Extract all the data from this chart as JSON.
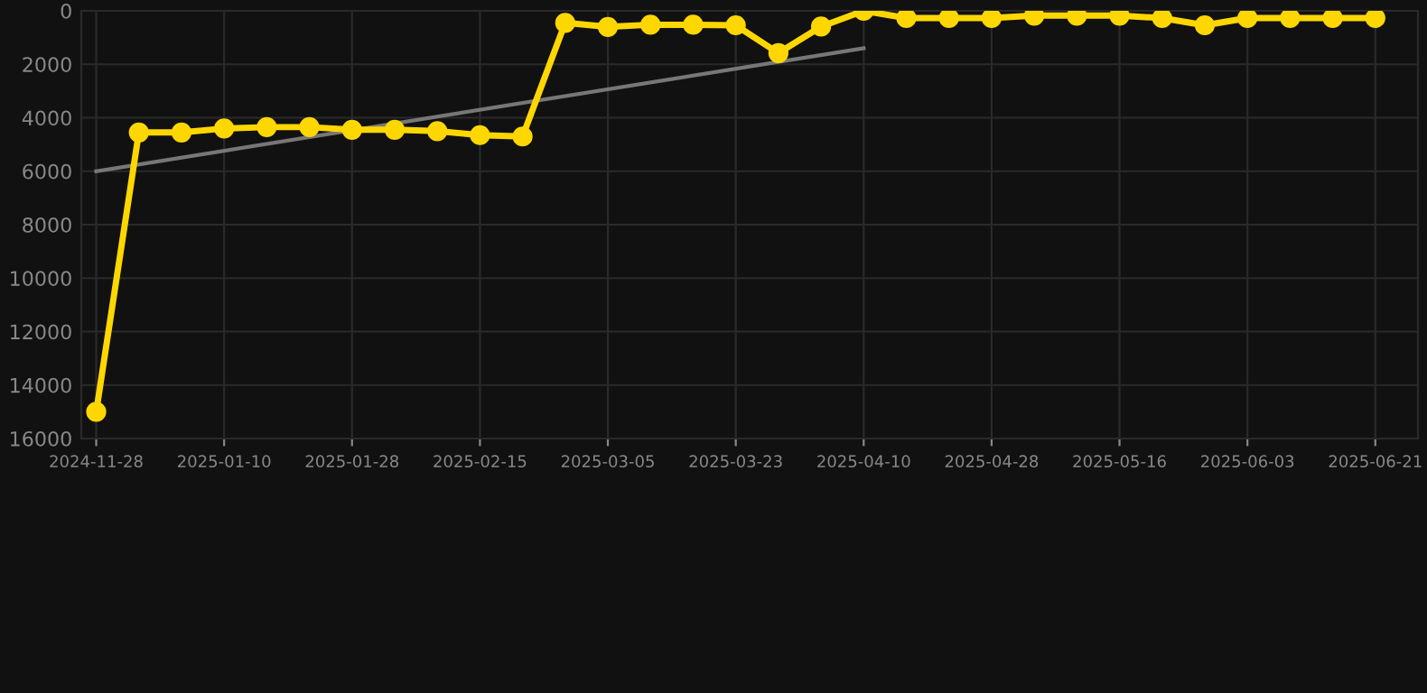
{
  "chart_data": {
    "type": "line",
    "categories": [
      "2024-11-28",
      null,
      null,
      "2025-01-10",
      null,
      null,
      "2025-01-28",
      null,
      null,
      "2025-02-15",
      null,
      null,
      "2025-03-05",
      null,
      null,
      "2025-03-23",
      null,
      null,
      "2025-04-10",
      null,
      null,
      "2025-04-28",
      null,
      null,
      "2025-05-16",
      null,
      null,
      "2025-06-03",
      null,
      null,
      "2025-06-21"
    ],
    "series": [
      {
        "color": "#ffd700",
        "marker": "circle",
        "values": [
          15000,
          4550,
          4550,
          4400,
          4350,
          4350,
          4450,
          4450,
          4500,
          4650,
          4700,
          450,
          600,
          520,
          520,
          540,
          1580,
          590,
          0,
          270,
          270,
          270,
          180,
          180,
          180,
          270,
          540,
          270,
          270,
          270,
          270
        ]
      },
      {
        "type": "line",
        "color": "#777777",
        "marker": "none",
        "values": [
          6000,
          null,
          null,
          null,
          null,
          null,
          null,
          null,
          null,
          null,
          null,
          null,
          null,
          null,
          null,
          null,
          null,
          null,
          1400,
          null,
          null,
          null,
          null,
          null,
          null,
          null,
          null,
          null,
          null,
          null,
          null
        ]
      }
    ],
    "ylim": [
      16000,
      0
    ],
    "yticks": [
      0,
      2000,
      4000,
      6000,
      8000,
      10000,
      12000,
      14000,
      16000
    ],
    "grid": true
  }
}
